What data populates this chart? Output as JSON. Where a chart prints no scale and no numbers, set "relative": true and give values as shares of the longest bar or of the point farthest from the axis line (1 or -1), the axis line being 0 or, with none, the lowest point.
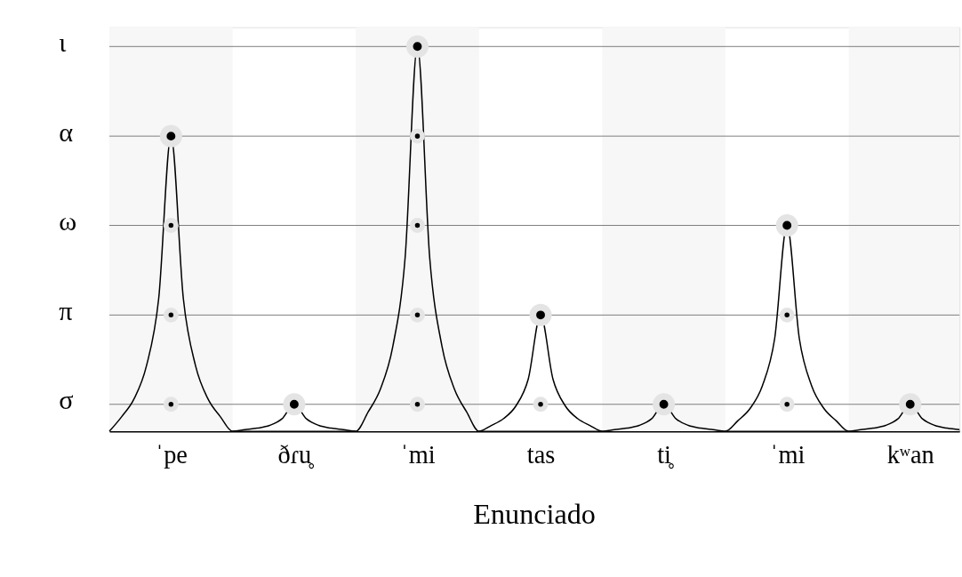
{
  "chart_data": {
    "type": "line",
    "xlabel": "Enunciado",
    "relative": true,
    "line_style": "solid",
    "categories": [
      null,
      null,
      null,
      null,
      null,
      "ˈpe",
      null,
      null,
      null,
      null,
      null,
      null,
      null,
      null,
      null,
      "ðɾu̥",
      null,
      null,
      null,
      null,
      null,
      null,
      null,
      null,
      null,
      "ˈmi",
      null,
      null,
      null,
      null,
      null,
      null,
      null,
      null,
      null,
      "tas",
      null,
      null,
      null,
      null,
      null,
      null,
      null,
      null,
      null,
      "ti̥",
      null,
      null,
      null,
      null,
      null,
      null,
      null,
      null,
      null,
      "ˈmi",
      null,
      null,
      null,
      null,
      null,
      null,
      null,
      null,
      null,
      "kʷan",
      null,
      null,
      null,
      null
    ],
    "ref_lines": [
      {
        "axis": "y",
        "value": 0.07,
        "label": "σ",
        "color": "#777777"
      },
      {
        "axis": "y",
        "value": 0.302,
        "label": "π",
        "color": "#777777"
      },
      {
        "axis": "y",
        "value": 0.535,
        "label": "ω",
        "color": "#777777"
      },
      {
        "axis": "y",
        "value": 0.767,
        "label": "α",
        "color": "#777777"
      },
      {
        "axis": "y",
        "value": 1,
        "label": "ι",
        "color": "#777777"
      }
    ],
    "series": [
      {
        "color": "#000000",
        "values": [
          0,
          0.038,
          0.084,
          0.169,
          0.345,
          0.767,
          0.345,
          0.169,
          0.084,
          0.038,
          0,
          0.004,
          0.008,
          0.015,
          0.032,
          0.07,
          0.032,
          0.015,
          0.008,
          0.004,
          0,
          0.05,
          0.11,
          0.22,
          0.45,
          1,
          0.45,
          0.22,
          0.11,
          0.05,
          0,
          0.015,
          0.033,
          0.066,
          0.136,
          0.302,
          0.136,
          0.066,
          0.033,
          0.015,
          0,
          0.004,
          0.008,
          0.015,
          0.032,
          0.07,
          0.032,
          0.015,
          0.008,
          0.004,
          0,
          0.027,
          0.059,
          0.118,
          0.241,
          0.535,
          0.241,
          0.118,
          0.059,
          0.027,
          0,
          0.004,
          0.008,
          0.015,
          0.032,
          0.07,
          0.032,
          0.015,
          0.008,
          0.004
        ]
      },
      {
        "type": "scatter",
        "marker": "circle",
        "color": "#000000",
        "values": [
          null,
          null,
          null,
          null,
          null,
          0.767,
          null,
          null,
          null,
          null,
          null,
          null,
          null,
          null,
          null,
          0.07,
          null,
          null,
          null,
          null,
          null,
          null,
          null,
          null,
          null,
          1,
          null,
          null,
          null,
          null,
          null,
          null,
          null,
          null,
          null,
          0.302,
          null,
          null,
          null,
          null,
          null,
          null,
          null,
          null,
          null,
          0.07,
          null,
          null,
          null,
          null,
          null,
          null,
          null,
          null,
          null,
          0.535,
          null,
          null,
          null,
          null,
          null,
          null,
          null,
          null,
          null,
          0.07,
          null,
          null,
          null,
          null
        ]
      },
      {
        "type": "scatter",
        "marker": "circle",
        "color": "#000000",
        "values": [
          null,
          null,
          null,
          null,
          null,
          0.07,
          null,
          null,
          null,
          null,
          null,
          null,
          null,
          null,
          null,
          null,
          null,
          null,
          null,
          null,
          null,
          null,
          null,
          null,
          null,
          0.07,
          null,
          null,
          null,
          null,
          null,
          null,
          null,
          null,
          null,
          0.07,
          null,
          null,
          null,
          null,
          null,
          null,
          null,
          null,
          null,
          null,
          null,
          null,
          null,
          null,
          null,
          null,
          null,
          null,
          null,
          0.07,
          null,
          null,
          null,
          null,
          null,
          null,
          null,
          null,
          null,
          null,
          null,
          null,
          null,
          null
        ]
      },
      {
        "type": "scatter",
        "marker": "circle",
        "color": "#000000",
        "values": [
          null,
          null,
          null,
          null,
          null,
          0.302,
          null,
          null,
          null,
          null,
          null,
          null,
          null,
          null,
          null,
          null,
          null,
          null,
          null,
          null,
          null,
          null,
          null,
          null,
          null,
          0.302,
          null,
          null,
          null,
          null,
          null,
          null,
          null,
          null,
          null,
          null,
          null,
          null,
          null,
          null,
          null,
          null,
          null,
          null,
          null,
          null,
          null,
          null,
          null,
          null,
          null,
          null,
          null,
          null,
          null,
          0.302,
          null,
          null,
          null,
          null,
          null,
          null,
          null,
          null,
          null,
          null,
          null,
          null,
          null,
          null
        ]
      },
      {
        "type": "scatter",
        "marker": "circle",
        "color": "#000000",
        "values": [
          null,
          null,
          null,
          null,
          null,
          0.535,
          null,
          null,
          null,
          null,
          null,
          null,
          null,
          null,
          null,
          null,
          null,
          null,
          null,
          null,
          null,
          null,
          null,
          null,
          null,
          0.535,
          null,
          null,
          null,
          null,
          null,
          null,
          null,
          null,
          null,
          null,
          null,
          null,
          null,
          null,
          null,
          null,
          null,
          null,
          null,
          null,
          null,
          null,
          null,
          null,
          null,
          null,
          null,
          null,
          null,
          null,
          null,
          null,
          null,
          null,
          null,
          null,
          null,
          null,
          null,
          null,
          null,
          null,
          null,
          null
        ]
      },
      {
        "type": "scatter",
        "marker": "circle",
        "color": "#000000",
        "values": [
          null,
          null,
          null,
          null,
          null,
          null,
          null,
          null,
          null,
          null,
          null,
          null,
          null,
          null,
          null,
          null,
          null,
          null,
          null,
          null,
          null,
          null,
          null,
          null,
          null,
          0.767,
          null,
          null,
          null,
          null,
          null,
          null,
          null,
          null,
          null,
          null,
          null,
          null,
          null,
          null,
          null,
          null,
          null,
          null,
          null,
          null,
          null,
          null,
          null,
          null,
          null,
          null,
          null,
          null,
          null,
          null,
          null,
          null,
          null,
          null,
          null,
          null,
          null,
          null,
          null,
          null,
          null,
          null,
          null,
          null
        ]
      }
    ]
  }
}
